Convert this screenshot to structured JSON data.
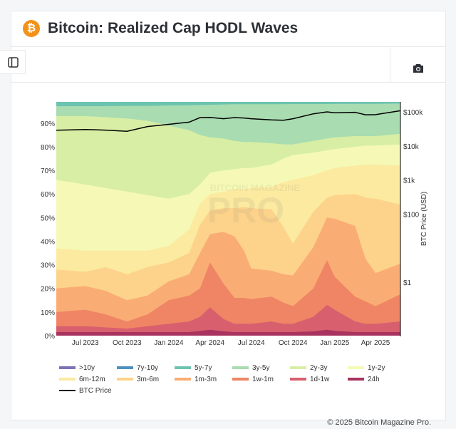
{
  "header": {
    "title": "Bitcoin: Realized Cap HODL Waves",
    "logo_icon": "bitcoin-icon"
  },
  "toolbar": {
    "sidebar_toggle_icon": "sidebar-icon",
    "screenshot_icon": "camera-icon"
  },
  "footer": {
    "copyright": "© 2025 Bitcoin Magazine Pro."
  },
  "watermark": {
    "line1": "BITCOIN MAGAZINE",
    "line2": "PRO"
  },
  "chart_data": {
    "type": "area",
    "stacking": "cumulative_upper_edges_percent",
    "title": "Bitcoin: Realized Cap HODL Waves",
    "ylabel_left": "",
    "ylabel_right": "BTC Price (USD)",
    "ylim": [
      0,
      99
    ],
    "yticks": [
      0,
      10,
      20,
      30,
      40,
      50,
      60,
      70,
      80,
      90
    ],
    "ytick_labels": [
      "0%",
      "10%",
      "20%",
      "30%",
      "40%",
      "50%",
      "60%",
      "70%",
      "80%",
      "90%"
    ],
    "y2_scale": "log",
    "y2lim": [
      0.05,
      200000
    ],
    "y2ticks": [
      1,
      100,
      1000,
      10000,
      100000
    ],
    "y2tick_labels": [
      "$1",
      "$100",
      "$1k",
      "$10k",
      "$100k"
    ],
    "xlim": [
      "2023-04-28",
      "2025-05-26"
    ],
    "xticks": [
      "2023-07-01",
      "2023-10-01",
      "2024-01-01",
      "2024-04-01",
      "2024-07-01",
      "2024-10-01",
      "2025-01-01",
      "2025-04-01"
    ],
    "xtick_labels": [
      "Jul 2023",
      "Oct 2023",
      "Jan 2024",
      "Apr 2024",
      "Jul 2024",
      "Oct 2024",
      "Jan 2025",
      "Apr 2025"
    ],
    "legend_position": "bottom",
    "x": [
      "2023-04-28",
      "2023-07-01",
      "2023-08-15",
      "2023-10-01",
      "2023-11-15",
      "2024-01-01",
      "2024-02-15",
      "2024-03-10",
      "2024-04-01",
      "2024-05-01",
      "2024-05-25",
      "2024-06-15",
      "2024-07-01",
      "2024-08-15",
      "2024-09-10",
      "2024-10-01",
      "2024-11-15",
      "2024-12-15",
      "2025-01-01",
      "2025-02-15",
      "2025-03-10",
      "2025-04-01",
      "2025-05-26"
    ],
    "series": [
      {
        "name": "24h",
        "color": "#a8335f",
        "upper": [
          1.5,
          1.5,
          1.5,
          1.5,
          1.5,
          1.5,
          1.5,
          2,
          2.5,
          1.8,
          1.5,
          1.5,
          1.5,
          1.5,
          1.5,
          1.5,
          1.8,
          2.5,
          2,
          1.5,
          1.5,
          1.5,
          1.5
        ]
      },
      {
        "name": "1d-1w",
        "color": "#d8606e",
        "upper": [
          4,
          4,
          3.5,
          3,
          4,
          5,
          6,
          8,
          12,
          7,
          5,
          5,
          5,
          6,
          5,
          5,
          8,
          13,
          11,
          6,
          5,
          5,
          6
        ]
      },
      {
        "name": "1w-1m",
        "color": "#ef8565",
        "upper": [
          10,
          11,
          9,
          6,
          9,
          15,
          17,
          20,
          31,
          22,
          16,
          16,
          15.5,
          16.5,
          14,
          12.5,
          20,
          32,
          25,
          16.5,
          14.5,
          12.5,
          17.5
        ]
      },
      {
        "name": "1m-3m",
        "color": "#f9ad74",
        "upper": [
          20,
          21,
          19,
          15,
          17,
          23,
          26,
          35,
          43,
          44,
          42,
          36,
          28.5,
          27.5,
          26,
          25.5,
          37.5,
          50,
          49.5,
          46.5,
          32.5,
          26.5,
          30.5
        ]
      },
      {
        "name": "3m-6m",
        "color": "#fdd38b",
        "upper": [
          28,
          27,
          29,
          26,
          29,
          31,
          35,
          47,
          53,
          54,
          54,
          54.5,
          54,
          53.5,
          46,
          39,
          52.5,
          58.5,
          59.5,
          60,
          58.5,
          58,
          55.5
        ]
      },
      {
        "name": "6m-12m",
        "color": "#fbeaa0",
        "upper": [
          37,
          36,
          36,
          36,
          36,
          38,
          45,
          56,
          60,
          61,
          62,
          62,
          62.5,
          63,
          65,
          66,
          68,
          70,
          71,
          72,
          72.5,
          72.5,
          72
        ]
      },
      {
        "name": "1y-2y",
        "color": "#f5f9b5",
        "upper": [
          66,
          64,
          62.5,
          61,
          59.5,
          58,
          60,
          64,
          69,
          70,
          70.5,
          71,
          71,
          72.5,
          75,
          76.5,
          77.5,
          78.5,
          79,
          80,
          80.5,
          80.5,
          81
        ]
      },
      {
        "name": "2y-3y",
        "color": "#d8eea5",
        "upper": [
          93,
          93,
          92.5,
          92,
          91,
          89,
          87,
          85,
          84,
          83.5,
          82.5,
          82,
          82,
          81.5,
          81,
          81,
          82.5,
          83.5,
          84,
          84.5,
          84.5,
          84.5,
          85.5
        ]
      },
      {
        "name": "3y-5y",
        "color": "#a9dcb0",
        "upper": [
          97.2,
          97.2,
          97.2,
          97.3,
          97.3,
          97.5,
          97.6,
          97.7,
          97.8,
          97.9,
          98,
          98,
          98,
          98,
          98,
          98.1,
          98.1,
          98.1,
          98.2,
          98.2,
          98.2,
          98.2,
          98.3
        ]
      },
      {
        "name": "5y-7y",
        "color": "#6cc3b0",
        "upper": [
          100,
          100,
          100,
          100,
          100,
          100,
          100,
          100,
          100,
          100,
          100,
          100,
          100,
          100,
          100,
          100,
          100,
          100,
          100,
          100,
          100,
          100,
          100
        ]
      },
      {
        "name": "7y-10y",
        "color": "#4f8fc0",
        "upper": [
          100,
          100,
          100,
          100,
          100,
          100,
          100,
          100,
          100,
          100,
          100,
          100,
          100,
          100,
          100,
          100,
          100,
          100,
          100,
          100,
          100,
          100,
          100
        ]
      },
      {
        "name": ">10y",
        "color": "#7e72b4",
        "upper": [
          100,
          100,
          100,
          100,
          100,
          100,
          100,
          100,
          100,
          100,
          100,
          100,
          100,
          100,
          100,
          100,
          100,
          100,
          100,
          100,
          100,
          100,
          100
        ]
      }
    ],
    "price": {
      "name": "BTC Price",
      "color": "#000000",
      "values": [
        29000,
        30500,
        29200,
        27000,
        37000,
        43000,
        50000,
        68000,
        69000,
        63000,
        68000,
        66000,
        63000,
        58000,
        57000,
        63000,
        88000,
        100000,
        94000,
        97000,
        82000,
        83000,
        108000
      ]
    },
    "legend_order": [
      ">10y",
      "7y-10y",
      "5y-7y",
      "3y-5y",
      "2y-3y",
      "1y-2y",
      "6m-12m",
      "3m-6m",
      "1m-3m",
      "1w-1m",
      "1d-1w",
      "24h",
      "BTC Price"
    ]
  }
}
